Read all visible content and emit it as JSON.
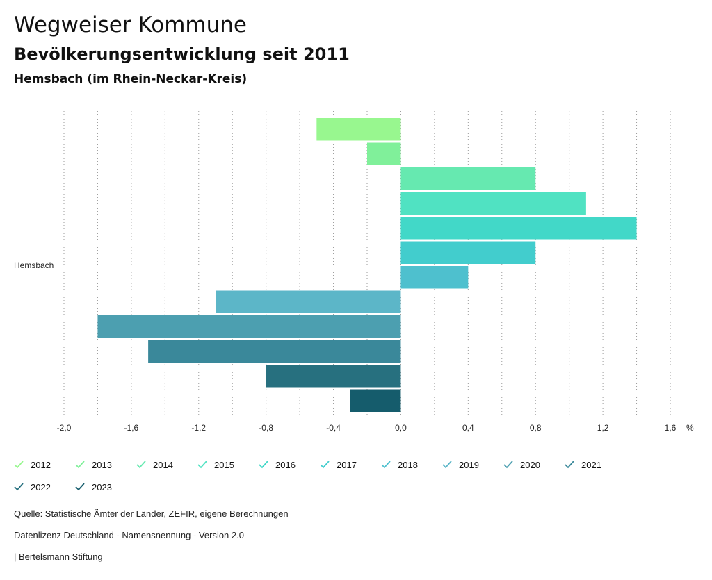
{
  "header": {
    "title": "Wegweiser Kommune",
    "subtitle": "Bevölkerungsentwicklung seit 2011",
    "region": "Hemsbach (im Rhein-Neckar-Kreis)"
  },
  "chart_data": {
    "type": "bar",
    "orientation": "horizontal",
    "categories": [
      "Hemsbach"
    ],
    "unit": "%",
    "xlim": [
      -2.0,
      1.6
    ],
    "xticks": [
      "-2,0",
      "-1,6",
      "-1,2",
      "-0,8",
      "-0,4",
      "0,0",
      "0,4",
      "0,8",
      "1,2",
      "1,6"
    ],
    "xtick_values": [
      -2.0,
      -1.6,
      -1.2,
      -0.8,
      -0.4,
      0.0,
      0.4,
      0.8,
      1.2,
      1.6
    ],
    "grid": true,
    "series": [
      {
        "name": "2012",
        "values": [
          -0.5
        ],
        "color": "#98f78f"
      },
      {
        "name": "2013",
        "values": [
          -0.2
        ],
        "color": "#80f09a"
      },
      {
        "name": "2014",
        "values": [
          0.8
        ],
        "color": "#66e9b0"
      },
      {
        "name": "2015",
        "values": [
          1.1
        ],
        "color": "#50e2c2"
      },
      {
        "name": "2016",
        "values": [
          1.4
        ],
        "color": "#42d8c8"
      },
      {
        "name": "2017",
        "values": [
          0.8
        ],
        "color": "#42cdcd"
      },
      {
        "name": "2018",
        "values": [
          0.4
        ],
        "color": "#4ec0ce"
      },
      {
        "name": "2019",
        "values": [
          -1.1
        ],
        "color": "#5cb6c8"
      },
      {
        "name": "2020",
        "values": [
          -1.8
        ],
        "color": "#4c9fb0"
      },
      {
        "name": "2021",
        "values": [
          -1.5
        ],
        "color": "#3a889a"
      },
      {
        "name": "2022",
        "values": [
          -0.8
        ],
        "color": "#27707f"
      },
      {
        "name": "2023",
        "values": [
          -0.3
        ],
        "color": "#155c6c"
      }
    ]
  },
  "footer": {
    "source": "Quelle: Statistische Ämter der Länder, ZEFIR, eigene Berechnungen",
    "license": "Datenlizenz Deutschland - Namensnennung - Version 2.0",
    "publisher": "| Bertelsmann Stiftung"
  }
}
